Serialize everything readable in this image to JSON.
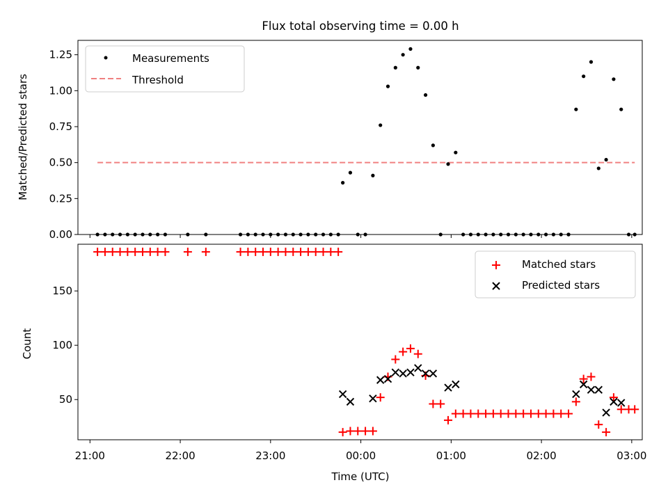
{
  "title": "Flux total observing time = 0.00 h",
  "colors": {
    "measurement": "#000000",
    "threshold": "#f08080",
    "matched": "#ff0000",
    "predicted": "#000000"
  },
  "chart_data": [
    {
      "type": "scatter",
      "title": "Flux total observing time = 0.00 h",
      "ylabel": "Matched/Predicted stars",
      "xlabel": "",
      "xlim": [
        "20:52",
        "03:07"
      ],
      "ylim": [
        0,
        1.35
      ],
      "yticks": [
        0.0,
        0.25,
        0.5,
        0.75,
        1.0,
        1.25
      ],
      "ytick_labels": [
        "0.00",
        "0.25",
        "0.50",
        "0.75",
        "1.00",
        "1.25"
      ],
      "legend_position": "top-left",
      "legend": [
        "Measurements",
        "Threshold"
      ],
      "series": [
        {
          "name": "Measurements",
          "marker": "dot",
          "color": "#000000",
          "points": [
            [
              "21:05",
              0
            ],
            [
              "21:10",
              0
            ],
            [
              "21:15",
              0
            ],
            [
              "21:20",
              0
            ],
            [
              "21:25",
              0
            ],
            [
              "21:30",
              0
            ],
            [
              "21:35",
              0
            ],
            [
              "21:40",
              0
            ],
            [
              "21:45",
              0
            ],
            [
              "21:50",
              0
            ],
            [
              "22:05",
              0
            ],
            [
              "22:17",
              0
            ],
            [
              "22:40",
              0
            ],
            [
              "22:45",
              0
            ],
            [
              "22:50",
              0
            ],
            [
              "22:55",
              0
            ],
            [
              "23:00",
              0
            ],
            [
              "23:05",
              0
            ],
            [
              "23:10",
              0
            ],
            [
              "23:15",
              0
            ],
            [
              "23:20",
              0
            ],
            [
              "23:25",
              0
            ],
            [
              "23:30",
              0
            ],
            [
              "23:35",
              0
            ],
            [
              "23:40",
              0
            ],
            [
              "23:45",
              0
            ],
            [
              "23:48",
              0.36
            ],
            [
              "23:53",
              0.43
            ],
            [
              "23:58",
              0
            ],
            [
              "00:03",
              0
            ],
            [
              "00:08",
              0.41
            ],
            [
              "00:13",
              0.76
            ],
            [
              "00:18",
              1.03
            ],
            [
              "00:23",
              1.16
            ],
            [
              "00:28",
              1.25
            ],
            [
              "00:33",
              1.29
            ],
            [
              "00:38",
              1.16
            ],
            [
              "00:43",
              0.97
            ],
            [
              "00:48",
              0.62
            ],
            [
              "00:53",
              0
            ],
            [
              "00:58",
              0.49
            ],
            [
              "01:03",
              0.57
            ],
            [
              "01:08",
              0
            ],
            [
              "01:13",
              0
            ],
            [
              "01:18",
              0
            ],
            [
              "01:23",
              0
            ],
            [
              "01:28",
              0
            ],
            [
              "01:33",
              0
            ],
            [
              "01:38",
              0
            ],
            [
              "01:43",
              0
            ],
            [
              "01:48",
              0
            ],
            [
              "01:53",
              0
            ],
            [
              "01:58",
              0
            ],
            [
              "02:03",
              0
            ],
            [
              "02:08",
              0
            ],
            [
              "02:13",
              0
            ],
            [
              "02:18",
              0
            ],
            [
              "02:18",
              0
            ],
            [
              "02:23",
              0.87
            ],
            [
              "02:28",
              1.1
            ],
            [
              "02:33",
              1.2
            ],
            [
              "02:38",
              0.46
            ],
            [
              "02:43",
              0.52
            ],
            [
              "02:48",
              1.08
            ],
            [
              "02:53",
              0.87
            ],
            [
              "02:58",
              0
            ],
            [
              "03:02",
              0
            ]
          ]
        },
        {
          "name": "Threshold",
          "line": "dashed",
          "color": "#f08080",
          "x": [
            "21:05",
            "03:02"
          ],
          "y": [
            0.5,
            0.5
          ]
        }
      ]
    },
    {
      "type": "scatter",
      "title": "",
      "ylabel": "Count",
      "xlabel": "Time (UTC)",
      "xlim": [
        "20:52",
        "03:07"
      ],
      "ylim": [
        13,
        193
      ],
      "yticks": [
        50,
        100,
        150
      ],
      "ytick_labels": [
        "50",
        "100",
        "150"
      ],
      "xticks": [
        "21:00",
        "22:00",
        "23:00",
        "00:00",
        "01:00",
        "02:00",
        "03:00"
      ],
      "xtick_labels": [
        "21:00",
        "22:00",
        "23:00",
        "00:00",
        "01:00",
        "02:00",
        "03:00"
      ],
      "legend_position": "top-right",
      "legend": [
        "Matched stars",
        "Predicted stars"
      ],
      "series": [
        {
          "name": "Matched stars",
          "marker": "plus",
          "color": "#ff0000",
          "points": [
            [
              "21:05",
              186
            ],
            [
              "21:10",
              186
            ],
            [
              "21:15",
              186
            ],
            [
              "21:20",
              186
            ],
            [
              "21:25",
              186
            ],
            [
              "21:30",
              186
            ],
            [
              "21:35",
              186
            ],
            [
              "21:40",
              186
            ],
            [
              "21:45",
              186
            ],
            [
              "21:50",
              186
            ],
            [
              "22:05",
              186
            ],
            [
              "22:17",
              186
            ],
            [
              "22:40",
              186
            ],
            [
              "22:45",
              186
            ],
            [
              "22:50",
              186
            ],
            [
              "22:55",
              186
            ],
            [
              "23:00",
              186
            ],
            [
              "23:05",
              186
            ],
            [
              "23:10",
              186
            ],
            [
              "23:15",
              186
            ],
            [
              "23:20",
              186
            ],
            [
              "23:25",
              186
            ],
            [
              "23:30",
              186
            ],
            [
              "23:35",
              186
            ],
            [
              "23:40",
              186
            ],
            [
              "23:45",
              186
            ],
            [
              "23:48",
              20
            ],
            [
              "23:53",
              21
            ],
            [
              "23:58",
              21
            ],
            [
              "00:03",
              21
            ],
            [
              "00:08",
              21
            ],
            [
              "00:13",
              52
            ],
            [
              "00:18",
              71
            ],
            [
              "00:23",
              87
            ],
            [
              "00:28",
              94
            ],
            [
              "00:33",
              97
            ],
            [
              "00:38",
              92
            ],
            [
              "00:43",
              72
            ],
            [
              "00:48",
              46
            ],
            [
              "00:53",
              46
            ],
            [
              "00:58",
              31
            ],
            [
              "01:03",
              37
            ],
            [
              "01:08",
              37
            ],
            [
              "01:13",
              37
            ],
            [
              "01:18",
              37
            ],
            [
              "01:23",
              37
            ],
            [
              "01:28",
              37
            ],
            [
              "01:33",
              37
            ],
            [
              "01:38",
              37
            ],
            [
              "01:43",
              37
            ],
            [
              "01:48",
              37
            ],
            [
              "01:53",
              37
            ],
            [
              "01:58",
              37
            ],
            [
              "02:03",
              37
            ],
            [
              "02:08",
              37
            ],
            [
              "02:13",
              37
            ],
            [
              "02:18",
              37
            ],
            [
              "02:23",
              48
            ],
            [
              "02:28",
              69
            ],
            [
              "02:33",
              71
            ],
            [
              "02:38",
              27
            ],
            [
              "02:43",
              20
            ],
            [
              "02:48",
              52
            ],
            [
              "02:53",
              41
            ],
            [
              "02:58",
              41
            ],
            [
              "03:02",
              41
            ]
          ]
        },
        {
          "name": "Predicted stars",
          "marker": "x",
          "color": "#000000",
          "points": [
            [
              "23:48",
              55
            ],
            [
              "23:53",
              48
            ],
            [
              "00:08",
              51
            ],
            [
              "00:13",
              68
            ],
            [
              "00:18",
              69
            ],
            [
              "00:23",
              75
            ],
            [
              "00:28",
              74
            ],
            [
              "00:33",
              75
            ],
            [
              "00:38",
              79
            ],
            [
              "00:43",
              74
            ],
            [
              "00:48",
              74
            ],
            [
              "00:58",
              61
            ],
            [
              "01:03",
              64
            ],
            [
              "02:23",
              55
            ],
            [
              "02:28",
              64
            ],
            [
              "02:33",
              59
            ],
            [
              "02:38",
              59
            ],
            [
              "02:43",
              38
            ],
            [
              "02:48",
              48
            ],
            [
              "02:53",
              47
            ]
          ]
        }
      ]
    }
  ]
}
